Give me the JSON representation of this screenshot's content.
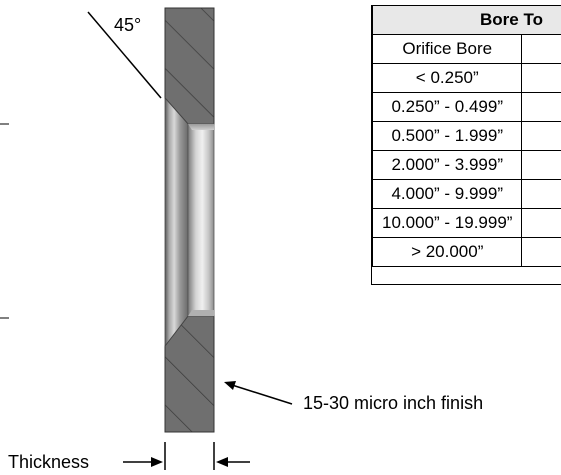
{
  "annotations": {
    "angle": "45°",
    "finish": "15-30 micro inch finish",
    "thickness": "Thickness"
  },
  "table": {
    "title": "Bore To",
    "header": "Orifice Bore",
    "rows": [
      "< 0.250”",
      "0.250” - 0.499”",
      "0.500” - 1.999”",
      "2.000” - 3.999”",
      "4.000” - 9.999”",
      "10.000” - 19.999”",
      "> 20.000”"
    ]
  }
}
